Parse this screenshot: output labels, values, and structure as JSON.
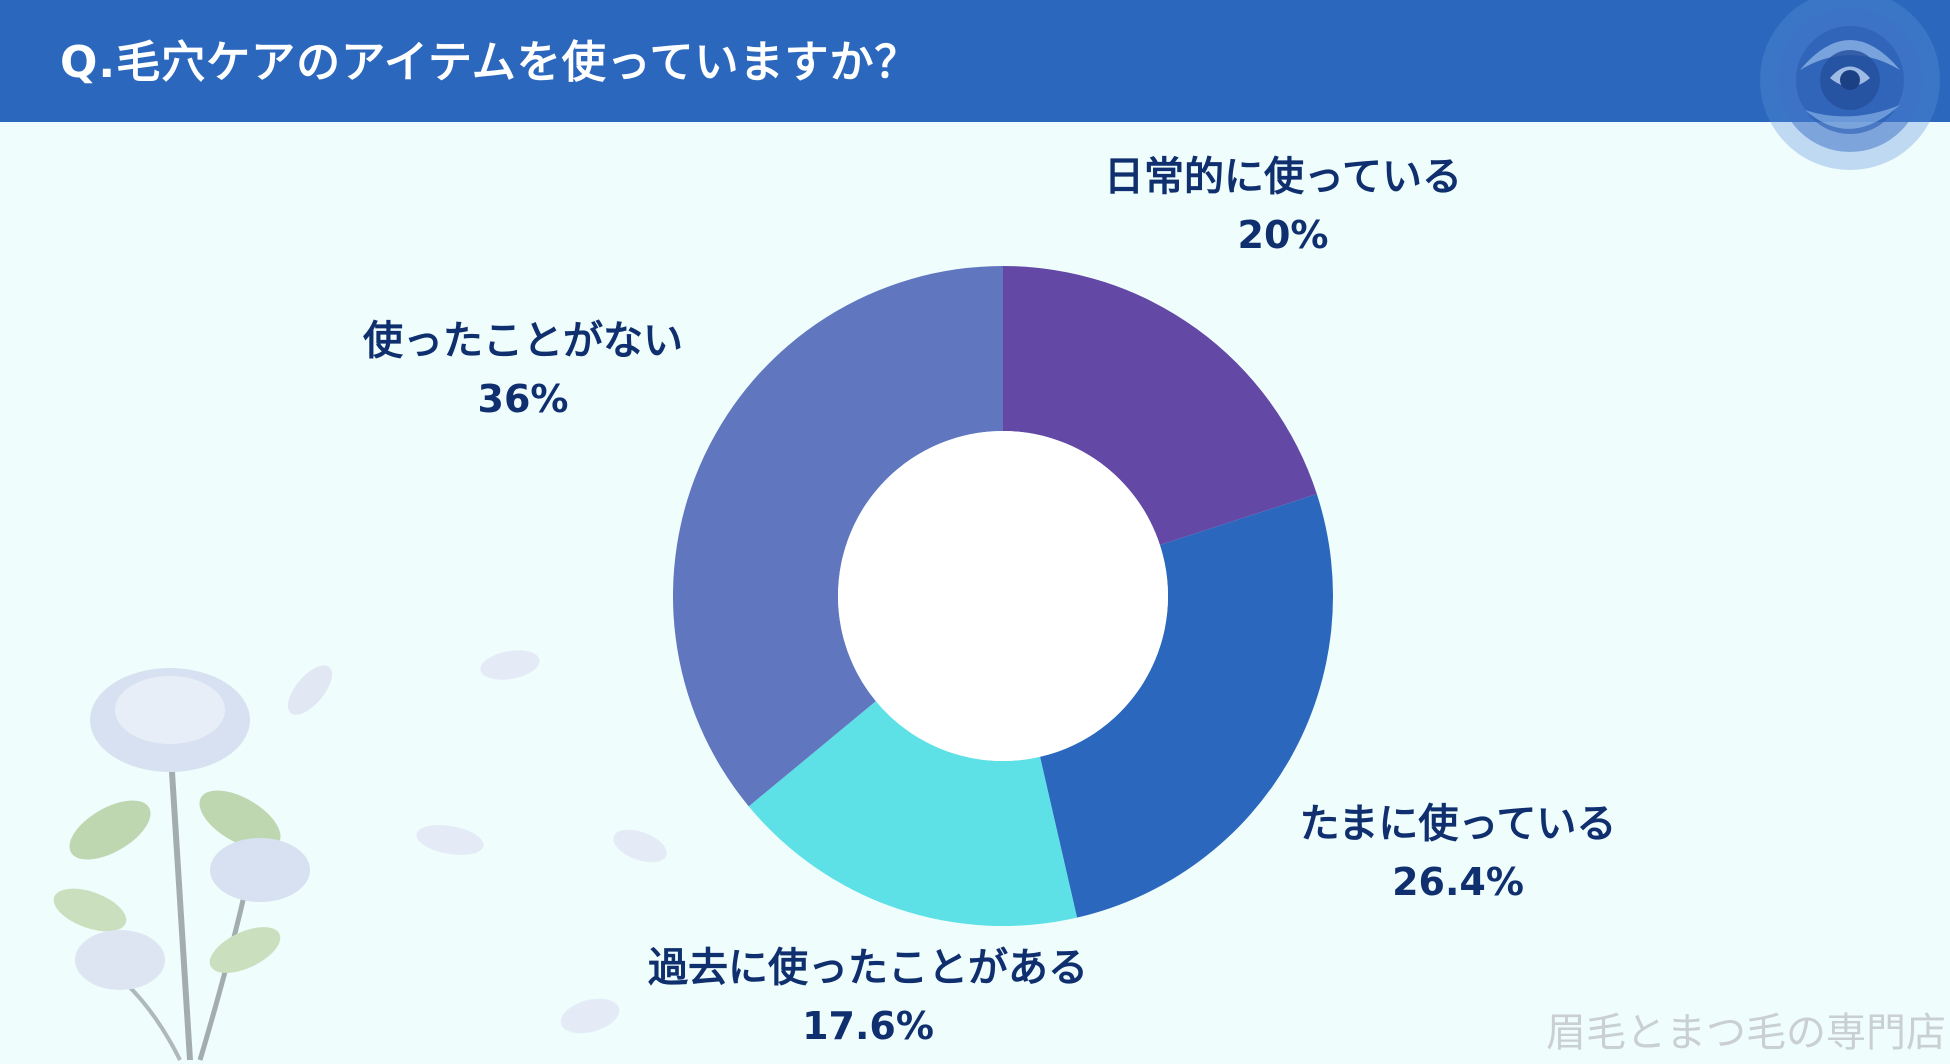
{
  "header": {
    "title": "Q.毛穴ケアのアイテムを使っていますか？"
  },
  "chart_data": {
    "type": "pie",
    "title": "Q.毛穴ケアのアイテムを使っていますか？",
    "donut": true,
    "slices": [
      {
        "label": "日常的に使っている",
        "value": 20,
        "display": "20%",
        "color": "#6448a6"
      },
      {
        "label": "たまに使っている",
        "value": 26.4,
        "display": "26.4%",
        "color": "#2b68bd"
      },
      {
        "label": "過去に使ったことがある",
        "value": 17.6,
        "display": "17.6%",
        "color": "#5ee1e6"
      },
      {
        "label": "使ったことがない",
        "value": 36,
        "display": "36%",
        "color": "#6076bf"
      }
    ]
  },
  "watermark": "眉毛とまつ毛の専門店"
}
